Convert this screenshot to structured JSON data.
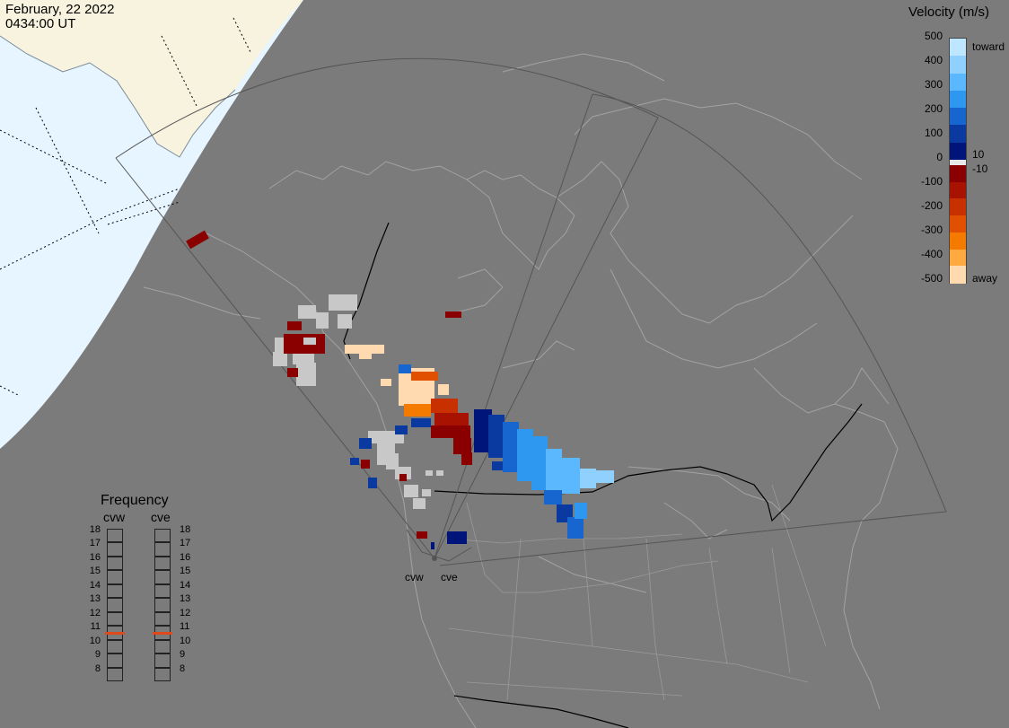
{
  "header": {
    "date": "February, 22 2022",
    "time": "0434:00 UT"
  },
  "velocity_scale": {
    "title": "Velocity (m/s)",
    "ticks": [
      "500",
      "400",
      "300",
      "200",
      "100",
      "0",
      "-100",
      "-200",
      "-300",
      "-400",
      "-500"
    ],
    "label_10": "10",
    "label_neg10": "-10",
    "label_toward": "toward",
    "label_away": "away",
    "colors": [
      "#bfe6ff",
      "#8fd0ff",
      "#5bb8ff",
      "#2e97ef",
      "#1766cf",
      "#0a3aa0",
      "#00157a",
      "#8a0000",
      "#a81200",
      "#c83000",
      "#e05000",
      "#f47a00",
      "#ffaa40",
      "#ffd9b0"
    ]
  },
  "frequency": {
    "title": "Frequency",
    "radars": [
      "cvw",
      "cve"
    ],
    "levels": [
      "18",
      "17",
      "16",
      "15",
      "14",
      "13",
      "12",
      "11",
      "10",
      "9",
      "8"
    ],
    "cvw_frequency_mhz": 11,
    "cve_frequency_mhz": 11,
    "marker_color": "#e04a1a"
  },
  "stations": {
    "west": "cvw",
    "east": "cve"
  },
  "colors": {
    "ocean": "#e6f5ff",
    "land_day": "#f7f3de",
    "night": "#7b7b7b",
    "coast": "#a3a3a3",
    "border": "#000000",
    "ground_scatter": "#c8c8c8"
  }
}
